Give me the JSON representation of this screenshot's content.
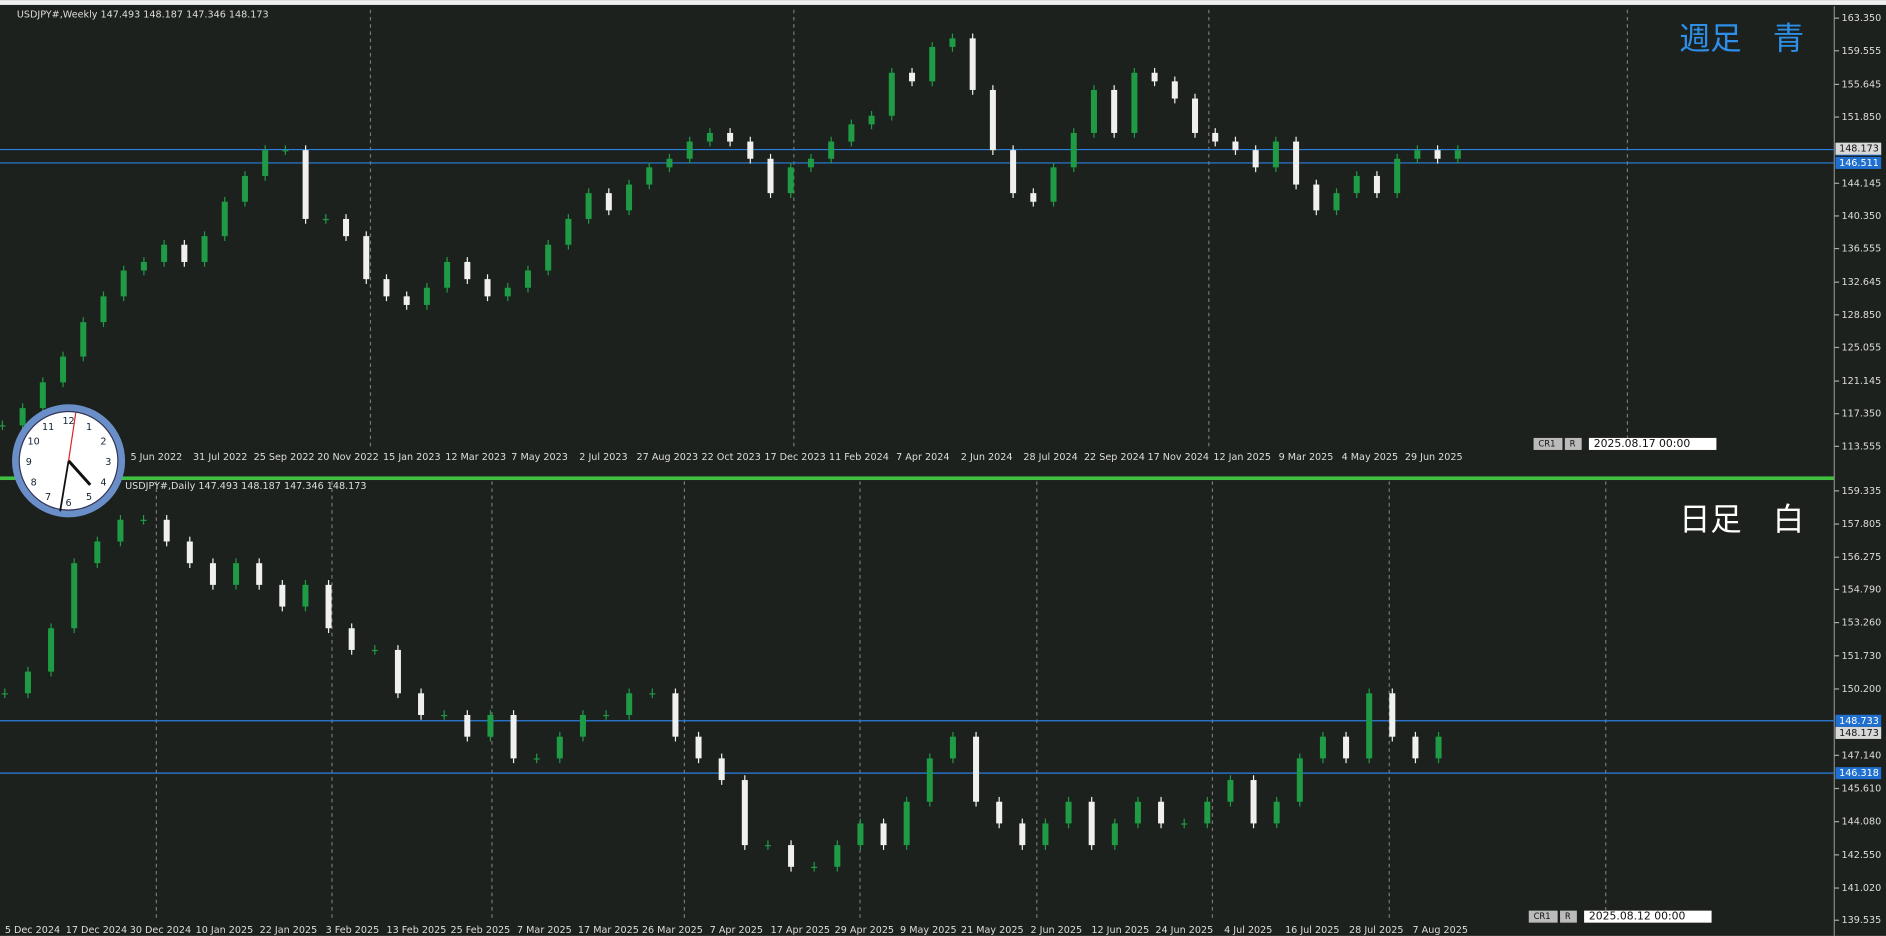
{
  "panels": [
    {
      "header": "USDJPY#,Weekly  147.493 148.187 147.346 148.173",
      "watermark": "週足　青",
      "watermark_color": "#2d8fe8",
      "date_box": {
        "tags": [
          "CR1",
          "R"
        ],
        "time": "2025.08.17 00:00"
      },
      "ylim": [
        113.555,
        163.35
      ],
      "ticks": [
        {
          "value": 163.35,
          "label": "163.350"
        },
        {
          "value": 159.555,
          "label": "159.555"
        },
        {
          "value": 155.645,
          "label": "155.645"
        },
        {
          "value": 151.85,
          "label": "151.850"
        },
        {
          "value": 144.145,
          "label": "144.145"
        },
        {
          "value": 140.35,
          "label": "140.350"
        },
        {
          "value": 136.555,
          "label": "136.555"
        },
        {
          "value": 132.645,
          "label": "132.645"
        },
        {
          "value": 128.85,
          "label": "128.850"
        },
        {
          "value": 125.055,
          "label": "125.055"
        },
        {
          "value": 121.145,
          "label": "121.145"
        },
        {
          "value": 117.35,
          "label": "117.350"
        },
        {
          "value": 113.555,
          "label": "113.555"
        }
      ],
      "levels": [
        {
          "value": 148.067,
          "label": "148.067"
        },
        {
          "value": 146.511,
          "label": "146.511"
        }
      ],
      "current": {
        "value": 148.173,
        "label": "148.173"
      },
      "dates": [
        "5 Jun 2022",
        "31 Jul 2022",
        "25 Sep 2022",
        "20 Nov 2022",
        "15 Jan 2023",
        "12 Mar 2023",
        "7 May 2023",
        "2 Jul 2023",
        "27 Aug 2023",
        "22 Oct 2023",
        "17 Dec 2023",
        "11 Feb 2024",
        "7 Apr 2024",
        "2 Jun 2024",
        "28 Jul 2024",
        "22 Sep 2024",
        "17 Nov 2024",
        "12 Jan 2025",
        "9 Mar 2025",
        "4 May 2025",
        "29 Jun 2025"
      ],
      "closes": [
        116,
        118,
        121,
        124,
        128,
        131,
        134,
        135,
        137,
        135,
        138,
        142,
        145,
        148,
        148,
        140,
        140,
        138,
        133,
        131,
        130,
        132,
        135,
        133,
        131,
        132,
        134,
        137,
        140,
        143,
        141,
        144,
        146,
        147,
        149,
        150,
        149,
        147,
        143,
        146,
        147,
        149,
        151,
        152,
        157,
        156,
        160,
        161,
        155,
        148,
        143,
        142,
        146,
        150,
        155,
        150,
        157,
        156,
        154,
        150,
        149,
        148,
        146,
        149,
        144,
        141,
        143,
        145,
        143,
        147,
        148,
        147,
        148
      ]
    },
    {
      "header": "USDJPY#,Daily  147.493 148.187 147.346 148.173",
      "watermark": "日足　白",
      "watermark_color": "#ffffff",
      "date_box": {
        "tags": [
          "CR1",
          "R"
        ],
        "time": "2025.08.12 00:00"
      },
      "ylim": [
        139.535,
        159.335
      ],
      "ticks": [
        {
          "value": 159.335,
          "label": "159.335"
        },
        {
          "value": 157.805,
          "label": "157.805"
        },
        {
          "value": 156.275,
          "label": "156.275"
        },
        {
          "value": 154.79,
          "label": "154.790"
        },
        {
          "value": 153.26,
          "label": "153.260"
        },
        {
          "value": 151.73,
          "label": "151.730"
        },
        {
          "value": 150.2,
          "label": "150.200"
        },
        {
          "value": 147.14,
          "label": "147.140"
        },
        {
          "value": 145.61,
          "label": "145.610"
        },
        {
          "value": 144.08,
          "label": "144.080"
        },
        {
          "value": 142.55,
          "label": "142.550"
        },
        {
          "value": 141.02,
          "label": "141.020"
        },
        {
          "value": 139.535,
          "label": "139.535"
        }
      ],
      "levels": [
        {
          "value": 148.733,
          "label": "148.733"
        },
        {
          "value": 146.318,
          "label": "146.318"
        }
      ],
      "current": {
        "value": 148.173,
        "label": "148.173"
      },
      "dates": [
        "5 Dec 2024",
        "17 Dec 2024",
        "30 Dec 2024",
        "10 Jan 2025",
        "22 Jan 2025",
        "3 Feb 2025",
        "13 Feb 2025",
        "25 Feb 2025",
        "7 Mar 2025",
        "17 Mar 2025",
        "26 Mar 2025",
        "7 Apr 2025",
        "17 Apr 2025",
        "29 Apr 2025",
        "9 May 2025",
        "21 May 2025",
        "2 Jun 2025",
        "12 Jun 2025",
        "24 Jun 2025",
        "4 Jul 2025",
        "16 Jul 2025",
        "28 Jul 2025",
        "7 Aug 2025"
      ],
      "closes": [
        150,
        151,
        153,
        156,
        157,
        158,
        158,
        157,
        156,
        155,
        156,
        155,
        154,
        155,
        153,
        152,
        152,
        150,
        149,
        149,
        148,
        149,
        147,
        147,
        148,
        149,
        149,
        150,
        150,
        148,
        147,
        146,
        143,
        143,
        142,
        142,
        143,
        144,
        143,
        145,
        147,
        148,
        145,
        144,
        143,
        144,
        145,
        143,
        144,
        145,
        144,
        144,
        145,
        146,
        144,
        145,
        147,
        148,
        147,
        150,
        148,
        147,
        148
      ]
    }
  ]
}
